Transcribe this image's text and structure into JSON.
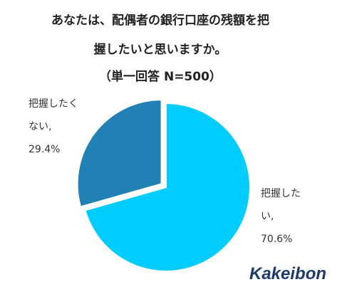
{
  "chart_data": {
    "type": "pie",
    "title": [
      "あなたは、配偶者の銀行口座の残額を把",
      "握したいと思いますか。"
    ],
    "subtitle": "（単一回答 N=500）",
    "categories": [
      "把握したい",
      "把握したくない"
    ],
    "values": [
      70.6,
      29.4
    ],
    "value_labels": [
      "把握したい, 70.6%",
      "把握したくない, 29.4%"
    ],
    "colors": [
      "#00ccff",
      "#2180b4"
    ],
    "exploded": [
      false,
      true
    ],
    "brand": "Kakeibon"
  }
}
